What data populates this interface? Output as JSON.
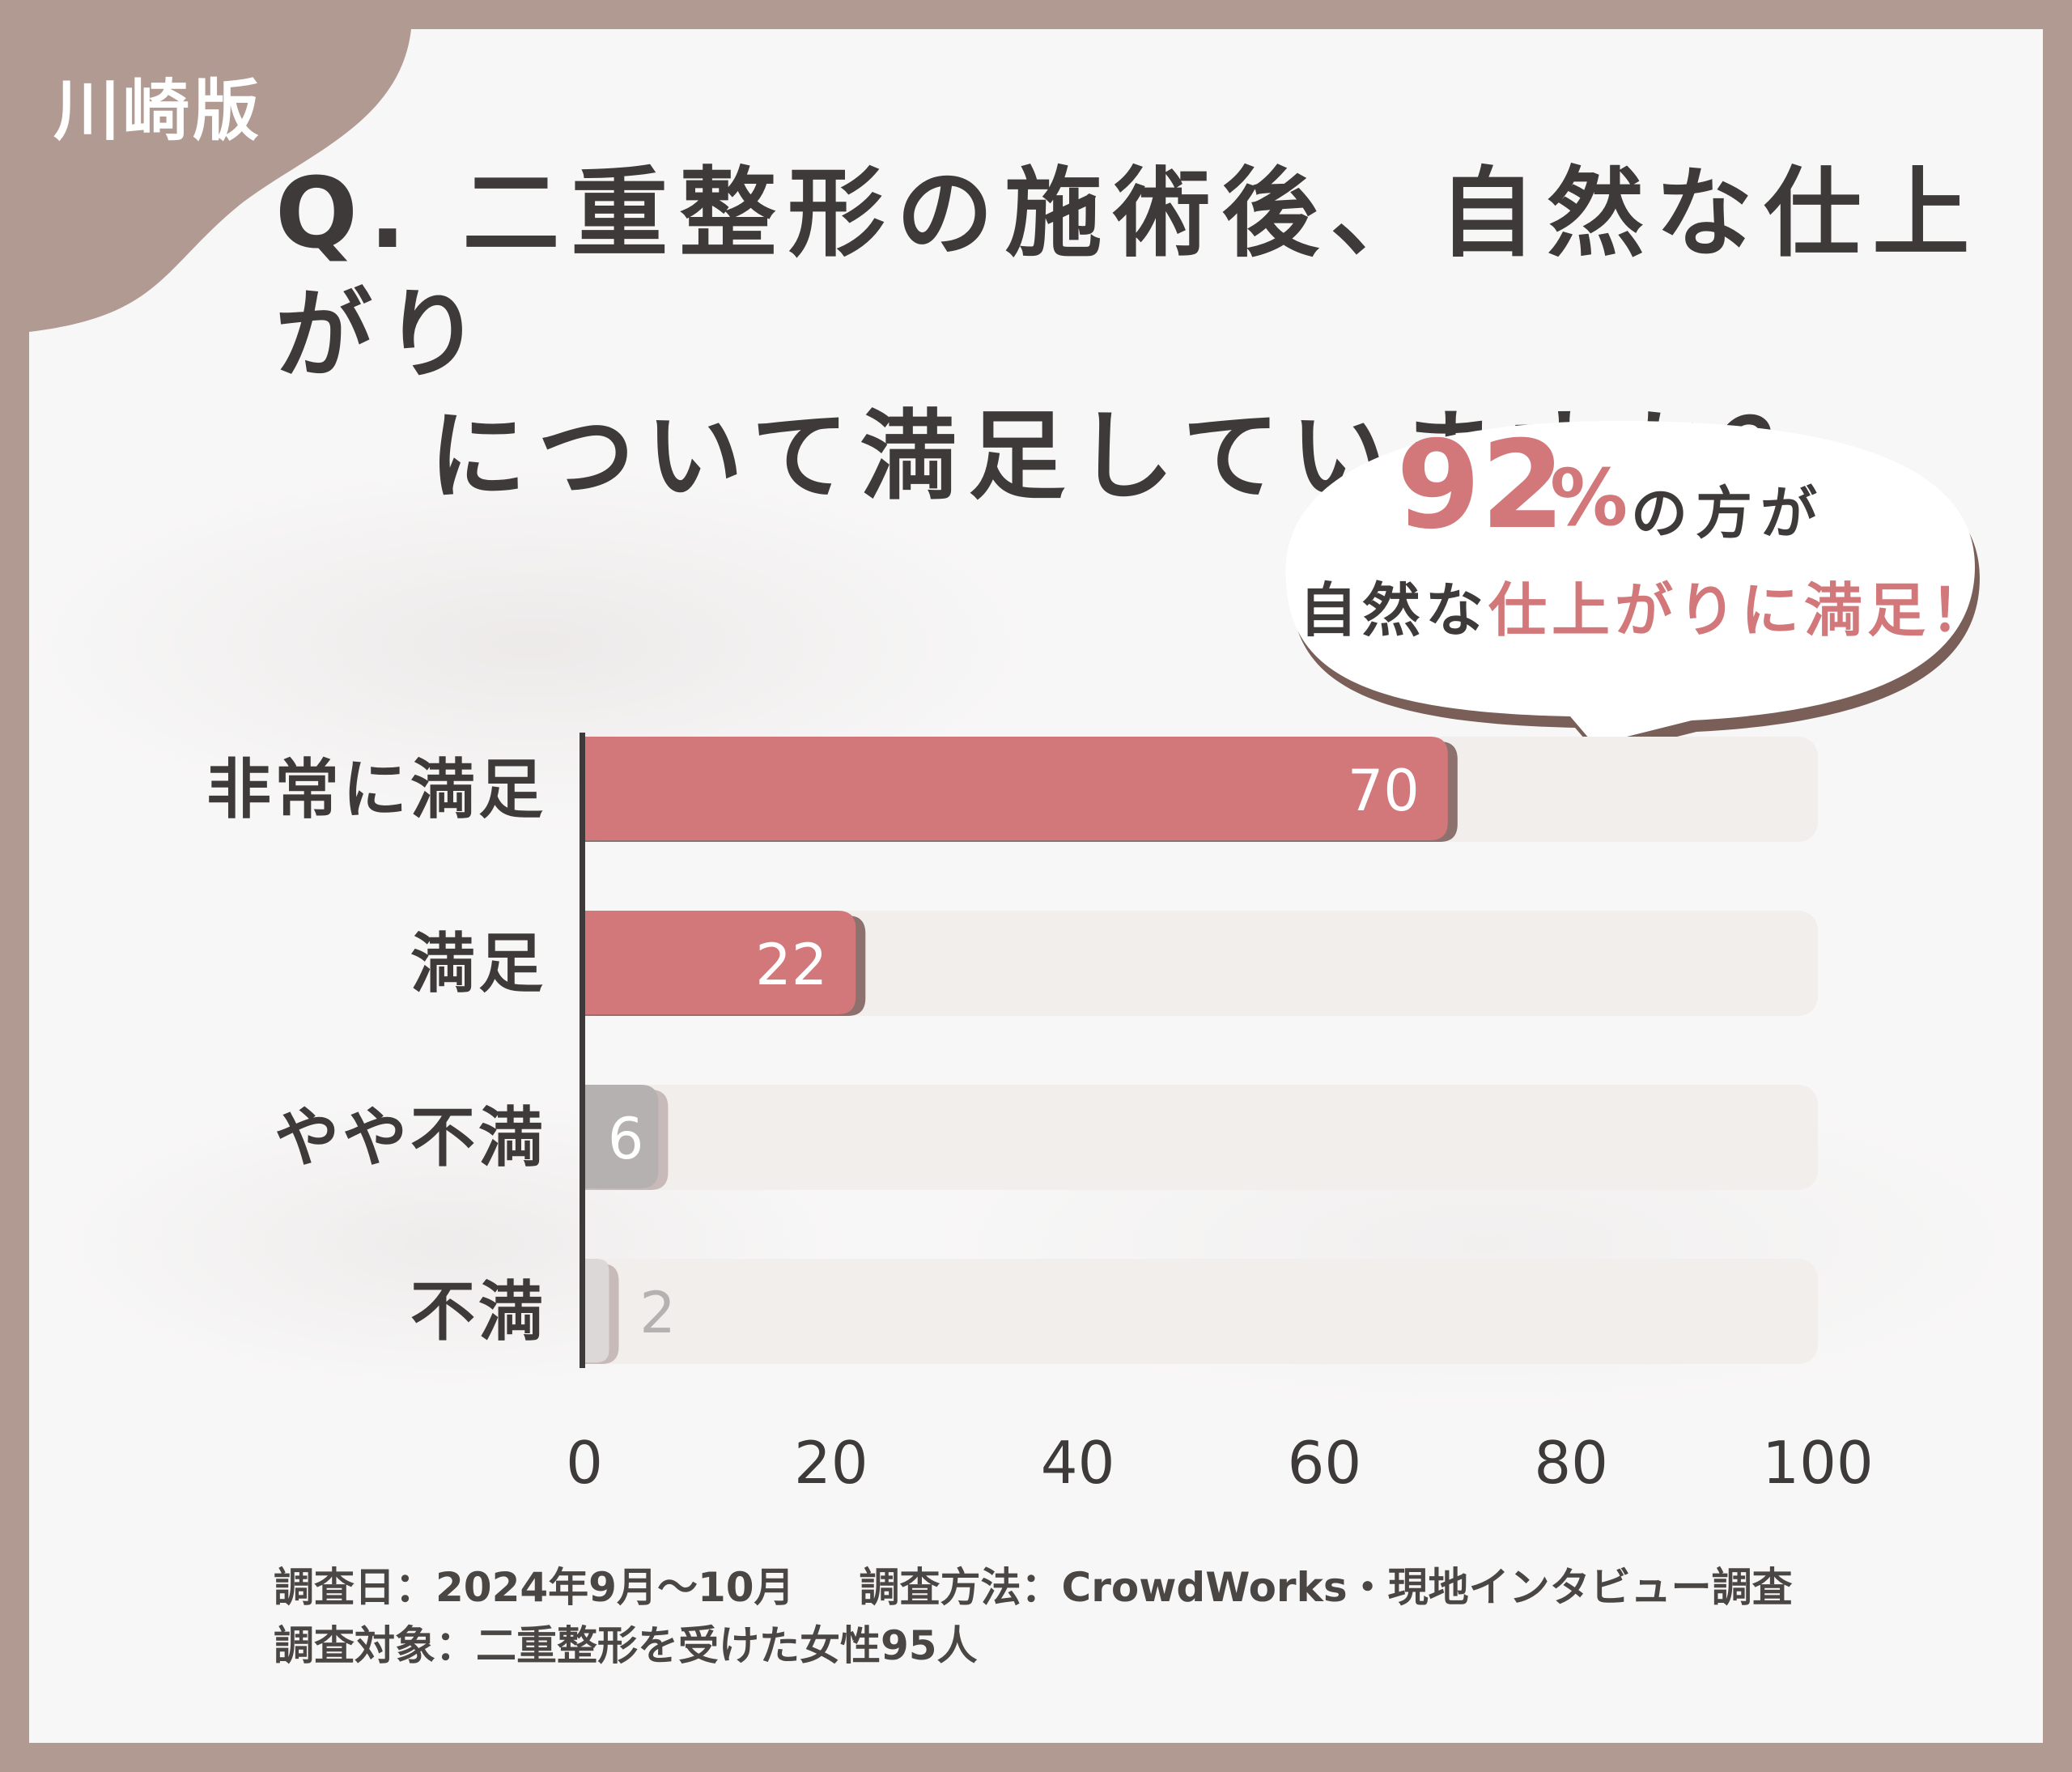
{
  "region_tag": "川崎版",
  "title": {
    "line1": "Q. 二重整形の施術後、自然な仕上がり",
    "line2": "について満足していますか？"
  },
  "callout": {
    "value": "92",
    "unit": "%",
    "line1_rest": "の方が",
    "line2_dark": "自然な",
    "line2_pink": "仕上がりに満足！"
  },
  "colors": {
    "accent": "#d2777a",
    "accent_shadow": "#7a5a58",
    "gray_bar": "#b5b1b0",
    "light_bar": "#dcd8d7",
    "track": "#f1eeec",
    "frame": "#b09a91",
    "text_dark": "#3d3a39"
  },
  "chart_data": {
    "type": "bar",
    "orientation": "horizontal",
    "categories": [
      "非常に満足",
      "満足",
      "やや不満",
      "不満"
    ],
    "values": [
      70,
      22,
      6,
      2
    ],
    "xlim": [
      0,
      100
    ],
    "xticks": [
      "0",
      "20",
      "40",
      "60",
      "80",
      "100"
    ],
    "grid": false,
    "legend": "none"
  },
  "footnote": {
    "date": "調査日：2024年9月～10月",
    "method": "調査方法：CrowdWorks・現地インタビュー調査",
    "target": "調査対象：二重整形を受けた女性95人"
  }
}
